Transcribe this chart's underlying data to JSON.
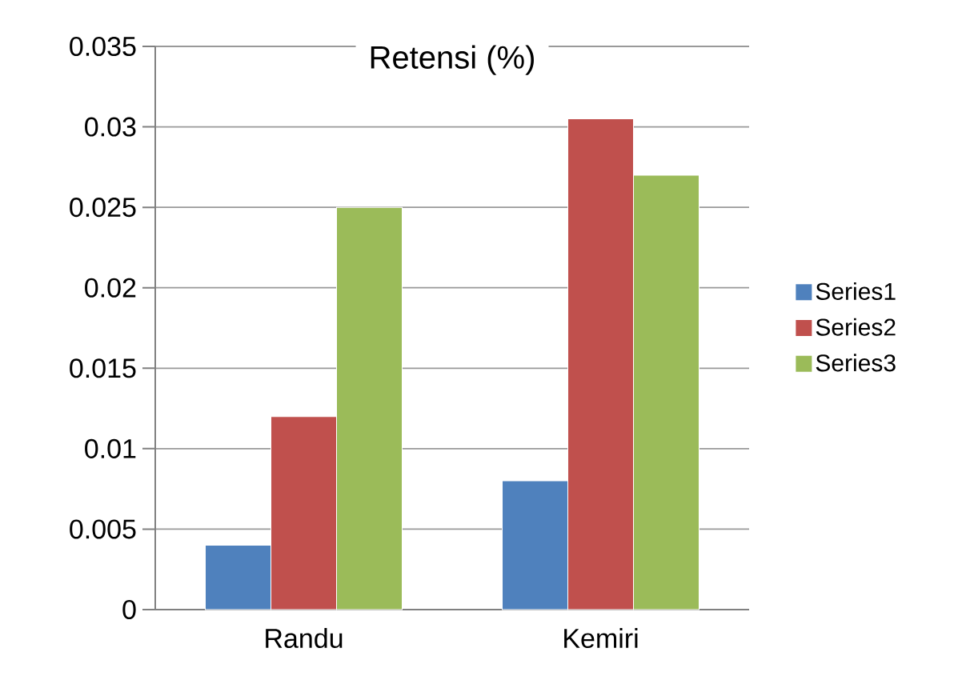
{
  "chart_data": {
    "type": "bar",
    "title": "Retensi (%)",
    "categories": [
      "Randu",
      "Kemiri"
    ],
    "series": [
      {
        "name": "Series1",
        "color": "#4f81bd",
        "values": [
          0.004,
          0.008
        ]
      },
      {
        "name": "Series2",
        "color": "#c0504d",
        "values": [
          0.012,
          0.0305
        ]
      },
      {
        "name": "Series3",
        "color": "#9bbb59",
        "values": [
          0.025,
          0.027
        ]
      }
    ],
    "ylim": [
      0,
      0.035
    ],
    "yticks": [
      0,
      0.005,
      0.01,
      0.015,
      0.02,
      0.025,
      0.03,
      0.035
    ],
    "grid": "y",
    "legend": "right"
  }
}
